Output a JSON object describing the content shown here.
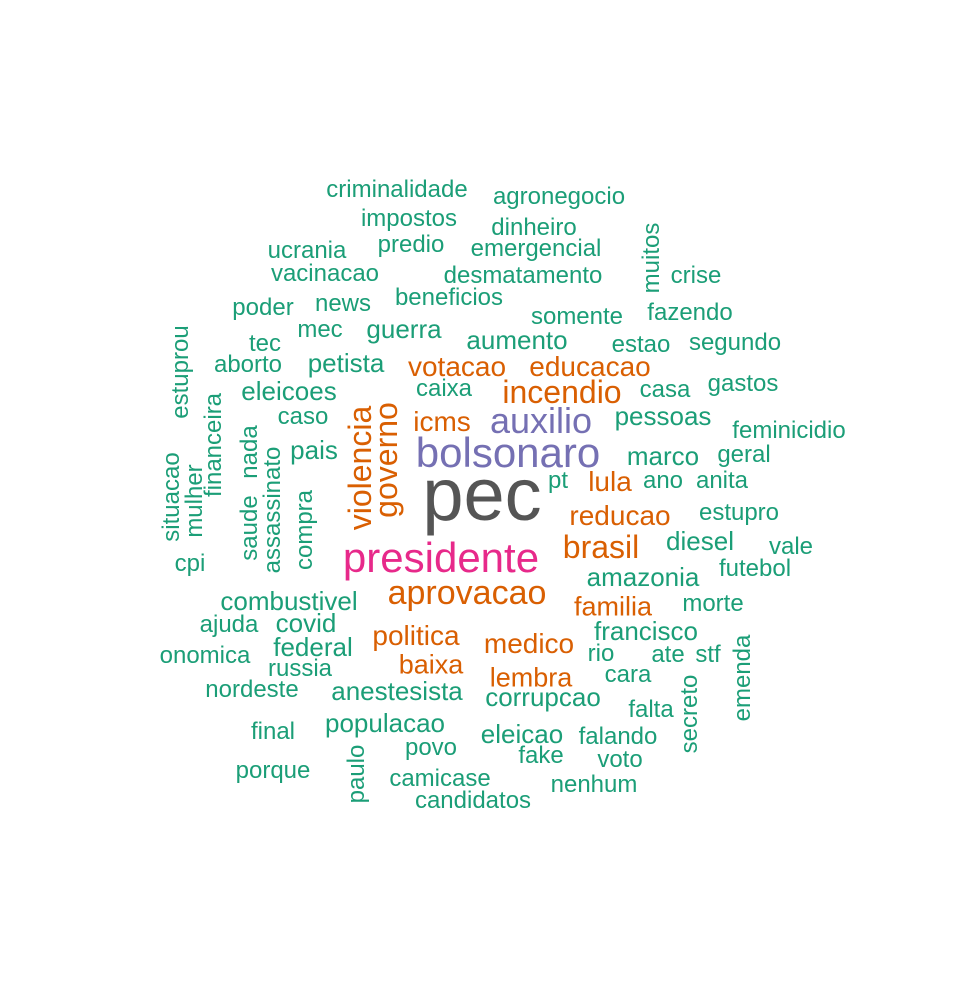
{
  "wordcloud": {
    "words": [
      {
        "text": "pec",
        "color": "#555555"
      },
      {
        "text": "bolsonaro",
        "color": "#7570b3"
      },
      {
        "text": "auxilio",
        "color": "#7570b3"
      },
      {
        "text": "presidente",
        "color": "#e7298a"
      },
      {
        "text": "aprovacao",
        "color": "#d95f02"
      },
      {
        "text": "incendio",
        "color": "#d95f02"
      },
      {
        "text": "brasil",
        "color": "#d95f02"
      },
      {
        "text": "violencia",
        "color": "#d95f02"
      },
      {
        "text": "governo",
        "color": "#d95f02"
      },
      {
        "text": "votacao",
        "color": "#d95f02"
      },
      {
        "text": "educacao",
        "color": "#d95f02"
      },
      {
        "text": "icms",
        "color": "#d95f02"
      },
      {
        "text": "lula",
        "color": "#d95f02"
      },
      {
        "text": "reducao",
        "color": "#d95f02"
      },
      {
        "text": "familia",
        "color": "#d95f02"
      },
      {
        "text": "politica",
        "color": "#d95f02"
      },
      {
        "text": "medico",
        "color": "#d95f02"
      },
      {
        "text": "baixa",
        "color": "#d95f02"
      },
      {
        "text": "lembra",
        "color": "#d95f02"
      },
      {
        "text": "criminalidade",
        "color": "#1b9e77"
      },
      {
        "text": "agronegocio",
        "color": "#1b9e77"
      },
      {
        "text": "impostos",
        "color": "#1b9e77"
      },
      {
        "text": "dinheiro",
        "color": "#1b9e77"
      },
      {
        "text": "ucrania",
        "color": "#1b9e77"
      },
      {
        "text": "predio",
        "color": "#1b9e77"
      },
      {
        "text": "emergencial",
        "color": "#1b9e77"
      },
      {
        "text": "muitos",
        "color": "#1b9e77"
      },
      {
        "text": "vacinacao",
        "color": "#1b9e77"
      },
      {
        "text": "desmatamento",
        "color": "#1b9e77"
      },
      {
        "text": "crise",
        "color": "#1b9e77"
      },
      {
        "text": "poder",
        "color": "#1b9e77"
      },
      {
        "text": "news",
        "color": "#1b9e77"
      },
      {
        "text": "beneficios",
        "color": "#1b9e77"
      },
      {
        "text": "fazendo",
        "color": "#1b9e77"
      },
      {
        "text": "somente",
        "color": "#1b9e77"
      },
      {
        "text": "estuprou",
        "color": "#1b9e77"
      },
      {
        "text": "tec",
        "color": "#1b9e77"
      },
      {
        "text": "mec",
        "color": "#1b9e77"
      },
      {
        "text": "guerra",
        "color": "#1b9e77"
      },
      {
        "text": "aumento",
        "color": "#1b9e77"
      },
      {
        "text": "estao",
        "color": "#1b9e77"
      },
      {
        "text": "segundo",
        "color": "#1b9e77"
      },
      {
        "text": "aborto",
        "color": "#1b9e77"
      },
      {
        "text": "petista",
        "color": "#1b9e77"
      },
      {
        "text": "gastos",
        "color": "#1b9e77"
      },
      {
        "text": "eleicoes",
        "color": "#1b9e77"
      },
      {
        "text": "caixa",
        "color": "#1b9e77"
      },
      {
        "text": "casa",
        "color": "#1b9e77"
      },
      {
        "text": "financeira",
        "color": "#1b9e77"
      },
      {
        "text": "caso",
        "color": "#1b9e77"
      },
      {
        "text": "pessoas",
        "color": "#1b9e77"
      },
      {
        "text": "feminicidio",
        "color": "#1b9e77"
      },
      {
        "text": "nada",
        "color": "#1b9e77"
      },
      {
        "text": "pais",
        "color": "#1b9e77"
      },
      {
        "text": "marco",
        "color": "#1b9e77"
      },
      {
        "text": "geral",
        "color": "#1b9e77"
      },
      {
        "text": "situacao",
        "color": "#1b9e77"
      },
      {
        "text": "mulher",
        "color": "#1b9e77"
      },
      {
        "text": "saude",
        "color": "#1b9e77"
      },
      {
        "text": "assassinato",
        "color": "#1b9e77"
      },
      {
        "text": "pt",
        "color": "#1b9e77"
      },
      {
        "text": "ano",
        "color": "#1b9e77"
      },
      {
        "text": "anita",
        "color": "#1b9e77"
      },
      {
        "text": "compra",
        "color": "#1b9e77"
      },
      {
        "text": "estupro",
        "color": "#1b9e77"
      },
      {
        "text": "cpi",
        "color": "#1b9e77"
      },
      {
        "text": "diesel",
        "color": "#1b9e77"
      },
      {
        "text": "vale",
        "color": "#1b9e77"
      },
      {
        "text": "amazonia",
        "color": "#1b9e77"
      },
      {
        "text": "futebol",
        "color": "#1b9e77"
      },
      {
        "text": "combustivel",
        "color": "#1b9e77"
      },
      {
        "text": "morte",
        "color": "#1b9e77"
      },
      {
        "text": "ajuda",
        "color": "#1b9e77"
      },
      {
        "text": "covid",
        "color": "#1b9e77"
      },
      {
        "text": "francisco",
        "color": "#1b9e77"
      },
      {
        "text": "federal",
        "color": "#1b9e77"
      },
      {
        "text": "emenda",
        "color": "#1b9e77"
      },
      {
        "text": "onomica",
        "color": "#1b9e77"
      },
      {
        "text": "rio",
        "color": "#1b9e77"
      },
      {
        "text": "ate",
        "color": "#1b9e77"
      },
      {
        "text": "stf",
        "color": "#1b9e77"
      },
      {
        "text": "russia",
        "color": "#1b9e77"
      },
      {
        "text": "cara",
        "color": "#1b9e77"
      },
      {
        "text": "nordeste",
        "color": "#1b9e77"
      },
      {
        "text": "anestesista",
        "color": "#1b9e77"
      },
      {
        "text": "corrupcao",
        "color": "#1b9e77"
      },
      {
        "text": "secreto",
        "color": "#1b9e77"
      },
      {
        "text": "falta",
        "color": "#1b9e77"
      },
      {
        "text": "populacao",
        "color": "#1b9e77"
      },
      {
        "text": "final",
        "color": "#1b9e77"
      },
      {
        "text": "eleicao",
        "color": "#1b9e77"
      },
      {
        "text": "falando",
        "color": "#1b9e77"
      },
      {
        "text": "povo",
        "color": "#1b9e77"
      },
      {
        "text": "paulo",
        "color": "#1b9e77"
      },
      {
        "text": "fake",
        "color": "#1b9e77"
      },
      {
        "text": "voto",
        "color": "#1b9e77"
      },
      {
        "text": "porque",
        "color": "#1b9e77"
      },
      {
        "text": "camicase",
        "color": "#1b9e77"
      },
      {
        "text": "nenhum",
        "color": "#1b9e77"
      },
      {
        "text": "candidatos",
        "color": "#1b9e77"
      }
    ]
  }
}
